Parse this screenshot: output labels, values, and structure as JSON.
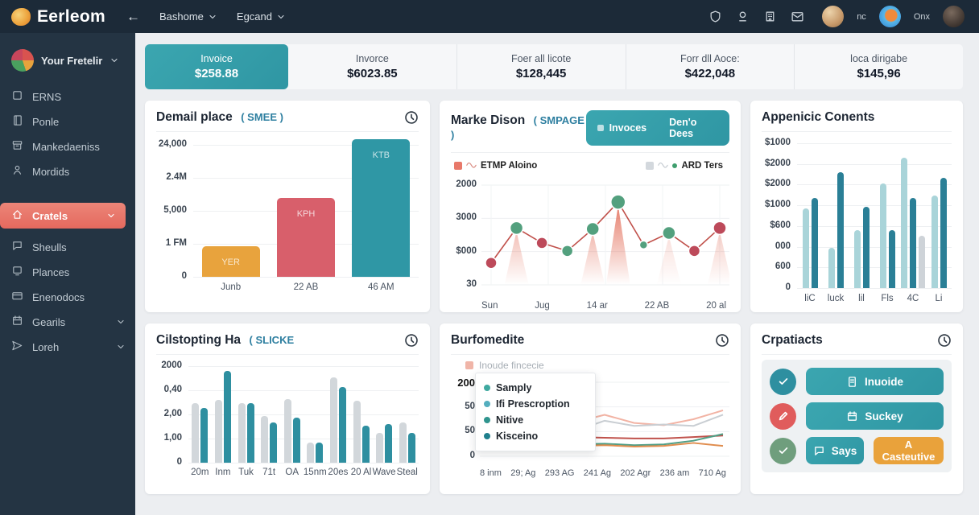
{
  "header": {
    "brand": "Eerleom",
    "back_arrow": "←",
    "nav": [
      {
        "label": "Bashome"
      },
      {
        "label": "Egcand"
      }
    ],
    "icons": [
      "shield",
      "userline",
      "building",
      "mail"
    ],
    "user_short": "nc",
    "workspace_short": "Onx"
  },
  "sidebar": {
    "workspace": "Your Fretelir",
    "items": [
      {
        "label": "ERNS",
        "icon": "square"
      },
      {
        "label": "Ponle",
        "icon": "book"
      },
      {
        "label": "Mankedaeniss",
        "icon": "archive"
      },
      {
        "label": "Mordids",
        "icon": "user"
      },
      {
        "label": "Cratels",
        "icon": "home",
        "active": true,
        "chevron": true
      },
      {
        "label": "Sheulls",
        "icon": "chat"
      },
      {
        "label": "Plances",
        "icon": "monitor"
      },
      {
        "label": "Enenodocs",
        "icon": "card"
      },
      {
        "label": "Gearils",
        "icon": "calendar",
        "chevron": true
      },
      {
        "label": "Loreh",
        "icon": "send",
        "chevron": true
      }
    ]
  },
  "stats": [
    {
      "label": "Invoice",
      "value": "$258.88",
      "highlight": true
    },
    {
      "label": "Invorce",
      "value": "$6023.85"
    },
    {
      "label": "Foer all licote",
      "value": "$128,445"
    },
    {
      "label": "Forr dll Aoce:",
      "value": "$422,048"
    },
    {
      "label": "loca dirigabe",
      "value": "$145,96"
    }
  ],
  "cards": {
    "demail": {
      "title": "Demail place",
      "subtitle": "( SMEE )"
    },
    "marke": {
      "title": "Marke Dison",
      "subtitle": "( SMPAGE )",
      "buttons": [
        "Invoces",
        "Den'o Dees"
      ],
      "legend_left": "ETMP Aloino",
      "legend_right": "ARD Ters"
    },
    "appenicic": {
      "title": "Appenicic Conents"
    },
    "cilstopting": {
      "title": "Cilstopting Ha",
      "subtitle": "( SLICKE"
    },
    "burfomedite": {
      "title": "Burfomedite",
      "legend": "Inoude fincecie",
      "tooltip_items": [
        "Samply",
        "Ifi Prescroption",
        "Nitive",
        "Kisceino"
      ],
      "tooltip_colors": [
        "#3fa9a0",
        "#54aebe",
        "#2f948e",
        "#20808d"
      ]
    },
    "crpatiacts": {
      "title": "Crpatiacts",
      "rows": [
        {
          "status": "check",
          "status_color": "teal",
          "button": "Inuoide",
          "icon": "doc"
        },
        {
          "status": "pencil",
          "status_color": "red",
          "button": "Suckey",
          "icon": "calendar"
        },
        {
          "status": "check",
          "status_color": "green",
          "button": "Says",
          "icon": "chat",
          "extra_button": "A Casteutive"
        }
      ]
    }
  },
  "chart_data": [
    {
      "id": "demail",
      "type": "bar",
      "title": "Demail place ( SMEE )",
      "y_ticks": [
        "24,000",
        "2.4M",
        "5,000",
        "1 FM",
        "0"
      ],
      "categories": [
        "Junb",
        "22 AB",
        "46 AM"
      ],
      "bars": [
        {
          "label": "YER",
          "value_pct": 23,
          "color": "#e8a33d"
        },
        {
          "label": "KPH",
          "value_pct": 60,
          "color": "#d85f6b"
        },
        {
          "label": "KTB",
          "value_pct": 104,
          "color": "#2f97a5"
        }
      ],
      "grid": true
    },
    {
      "id": "marke",
      "type": "line",
      "title": "Marke Dison ( SMPAGE )",
      "y_ticks": [
        "2000",
        "3000",
        "$000",
        "30"
      ],
      "x_ticks": [
        "Sun",
        "Jug",
        "14 ar",
        "22 AB",
        "20 al"
      ],
      "line_color": "#c0504a",
      "points": [
        {
          "pct": 22,
          "dot": "red",
          "r": 7
        },
        {
          "pct": 57,
          "dot": "green",
          "r": 8
        },
        {
          "pct": 42,
          "dot": "red",
          "r": 7
        },
        {
          "pct": 34,
          "dot": "green",
          "r": 7
        },
        {
          "pct": 56,
          "dot": "green",
          "r": 8
        },
        {
          "pct": 83,
          "dot": "green",
          "r": 9
        },
        {
          "pct": 40,
          "dot": "green",
          "r": 5
        },
        {
          "pct": 52,
          "dot": "green",
          "r": 8
        },
        {
          "pct": 34,
          "dot": "red",
          "r": 7
        },
        {
          "pct": 57,
          "dot": "red",
          "r": 8
        }
      ],
      "spikes": [
        {
          "i": 1,
          "o": 0.45
        },
        {
          "i": 4,
          "o": 0.5
        },
        {
          "i": 5,
          "o": 0.9
        },
        {
          "i": 7,
          "o": 0.22
        },
        {
          "i": 9,
          "o": 0.35
        }
      ]
    },
    {
      "id": "appenicic",
      "type": "grouped-bar",
      "title": "Appenicic Conents",
      "y_ticks": [
        "$1000",
        "$2000",
        "$2000",
        "$1000",
        "$600",
        "000",
        "600",
        "0"
      ],
      "categories": [
        "liC",
        "luck",
        "lil",
        "Fls",
        "4C",
        "Li"
      ],
      "series_colors": {
        "light": "#a9d4d9",
        "dark": "#2a7f96",
        "gray": "#ced3d8"
      },
      "groups": [
        [
          {
            "c": "light",
            "v": 55
          },
          {
            "c": "dark",
            "v": 62
          }
        ],
        [
          {
            "c": "light",
            "v": 28
          },
          {
            "c": "dark",
            "v": 80
          }
        ],
        [
          {
            "c": "light",
            "v": 40
          },
          {
            "c": "dark",
            "v": 56
          }
        ],
        [
          {
            "c": "light",
            "v": 72
          },
          {
            "c": "dark",
            "v": 40
          }
        ],
        [
          {
            "c": "light",
            "v": 90
          },
          {
            "c": "dark",
            "v": 62
          },
          {
            "c": "gray",
            "v": 36
          }
        ],
        [
          {
            "c": "light",
            "v": 64
          },
          {
            "c": "dark",
            "v": 76
          }
        ]
      ]
    },
    {
      "id": "cilstopting",
      "type": "paired-bar",
      "title": "Cilstopting Ha ( SLICKE",
      "y_ticks": [
        "2000",
        "0,40",
        "2,00",
        "1,00",
        "0"
      ],
      "categories": [
        "20m",
        "Inm",
        "Tuk",
        "71t",
        "OA",
        "15nm",
        "20es",
        "20 Al",
        "Wave",
        "Steal"
      ],
      "colors": [
        "#d2d7db",
        "#2e8fa0"
      ],
      "pairs": [
        [
          62,
          57
        ],
        [
          65,
          95
        ],
        [
          62,
          62
        ],
        [
          48,
          42
        ],
        [
          66,
          47
        ],
        [
          21,
          21
        ],
        [
          88,
          78
        ],
        [
          64,
          38
        ],
        [
          31,
          40
        ],
        [
          42,
          31
        ]
      ]
    },
    {
      "id": "burfomedite",
      "type": "multi-line",
      "title": "Burfomedite",
      "y_ticks": [
        "200",
        "50",
        "50",
        "0"
      ],
      "x_ticks": [
        "8 inm",
        "29; Ag",
        "293 AG",
        "241 Ag",
        "202 Agr",
        "236 am",
        "710 Ag"
      ],
      "series": [
        {
          "name": "salmon",
          "color": "#f2b3a4",
          "values": [
            38,
            40,
            36,
            46,
            56,
            45,
            42,
            50,
            62
          ]
        },
        {
          "name": "gray",
          "color": "#c9ced3",
          "values": [
            30,
            32,
            38,
            34,
            48,
            41,
            43,
            41,
            56
          ]
        },
        {
          "name": "red",
          "color": "#c0524c",
          "values": [
            70,
            44,
            29,
            26,
            25,
            24,
            24,
            26,
            28
          ]
        },
        {
          "name": "green",
          "color": "#4f9e85",
          "values": [
            13,
            14,
            15,
            16,
            17,
            15,
            16,
            21,
            30
          ]
        },
        {
          "name": "orange",
          "color": "#e08d4e",
          "values": [
            11,
            12,
            13,
            14,
            15,
            13,
            14,
            18,
            14
          ]
        }
      ]
    }
  ],
  "colors": {
    "teal": "#379fab",
    "teal_dark": "#2a7f96",
    "teal_light": "#a9d4d9",
    "coral_active": "#e8786c",
    "orange": "#e8a33d",
    "red_bar": "#d85f6b",
    "line_red": "#c0504a",
    "dot_green": "#53a07e",
    "dot_red": "#bd4a5a",
    "gray_bar": "#ced3d8",
    "header_bg": "#1c2a38",
    "sidebar_bg": "#243443",
    "page_bg": "#eceef1"
  }
}
